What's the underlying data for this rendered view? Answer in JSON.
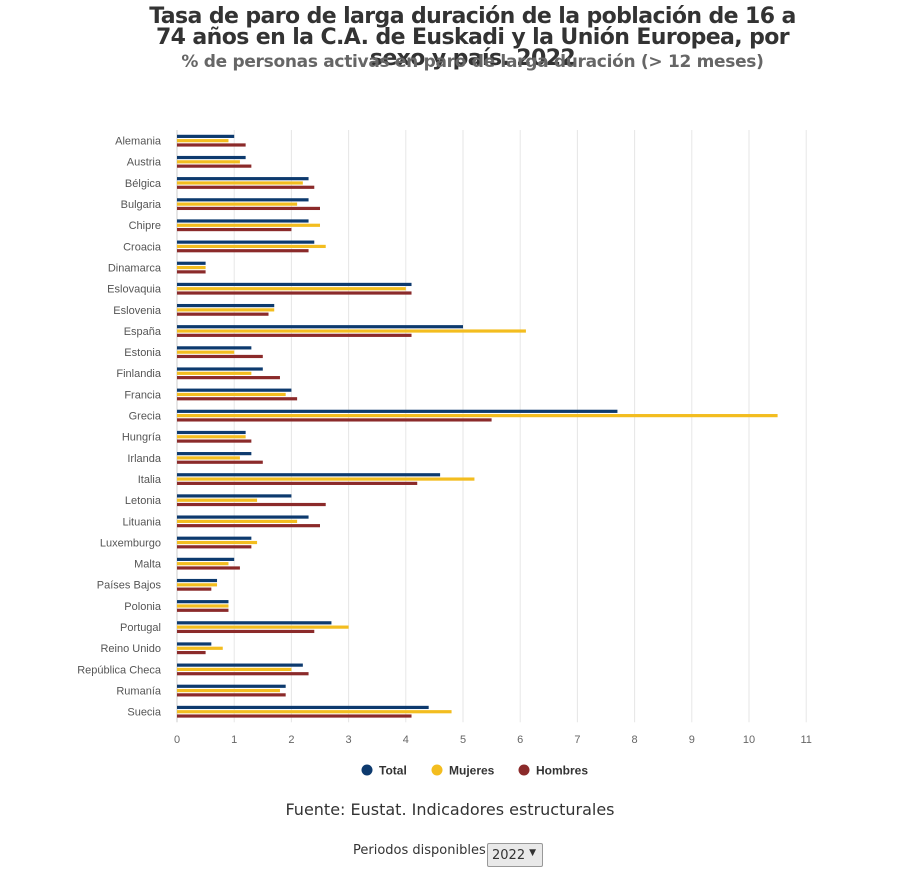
{
  "chart_data": {
    "type": "bar",
    "orientation": "horizontal",
    "title": "Tasa de paro de larga duración de la población de 16 a 74 años en la C.A. de Euskadi y la Unión Europea, por sexo y país. 2022",
    "subtitle": "% de personas activas en paro de larga duración (> 12 meses)",
    "categories": [
      "Alemania",
      "Austria",
      "Bélgica",
      "Bulgaria",
      "Chipre",
      "Croacia",
      "Dinamarca",
      "Eslovaquia",
      "Eslovenia",
      "España",
      "Estonia",
      "Finlandia",
      "Francia",
      "Grecia",
      "Hungría",
      "Irlanda",
      "Italia",
      "Letonia",
      "Lituania",
      "Luxemburgo",
      "Malta",
      "Países Bajos",
      "Polonia",
      "Portugal",
      "Reino Unido",
      "República Checa",
      "Rumanía",
      "Suecia"
    ],
    "series": [
      {
        "name": "Total",
        "color": "#0d3a6e",
        "values": [
          1.0,
          1.2,
          2.3,
          2.3,
          2.3,
          2.4,
          0.5,
          4.1,
          1.7,
          5.0,
          1.3,
          1.5,
          2.0,
          7.7,
          1.2,
          1.3,
          4.6,
          2.0,
          2.3,
          1.3,
          1.0,
          0.7,
          0.9,
          2.7,
          0.6,
          2.2,
          1.9,
          4.4
        ]
      },
      {
        "name": "Mujeres",
        "color": "#f3bd1f",
        "values": [
          0.9,
          1.1,
          2.2,
          2.1,
          2.5,
          2.6,
          0.5,
          4.0,
          1.7,
          6.1,
          1.0,
          1.3,
          1.9,
          10.5,
          1.2,
          1.1,
          5.2,
          1.4,
          2.1,
          1.4,
          0.9,
          0.7,
          0.9,
          3.0,
          0.8,
          2.0,
          1.8,
          4.8
        ]
      },
      {
        "name": "Hombres",
        "color": "#8b2a2a",
        "values": [
          1.2,
          1.3,
          2.4,
          2.5,
          2.0,
          2.3,
          0.5,
          4.1,
          1.6,
          4.1,
          1.5,
          1.8,
          2.1,
          5.5,
          1.3,
          1.5,
          4.2,
          2.6,
          2.5,
          1.3,
          1.1,
          0.6,
          0.9,
          2.4,
          0.5,
          2.3,
          1.9,
          4.1
        ]
      }
    ],
    "xlim": [
      0,
      11
    ],
    "xticks": [
      0,
      1,
      2,
      3,
      4,
      5,
      6,
      7,
      8,
      9,
      10,
      11
    ],
    "grid": true,
    "legend_position": "bottom"
  },
  "source": "Fuente: Eustat. Indicadores estructurales",
  "periods": {
    "label": "Periodos disponibles",
    "selected": "2022"
  }
}
